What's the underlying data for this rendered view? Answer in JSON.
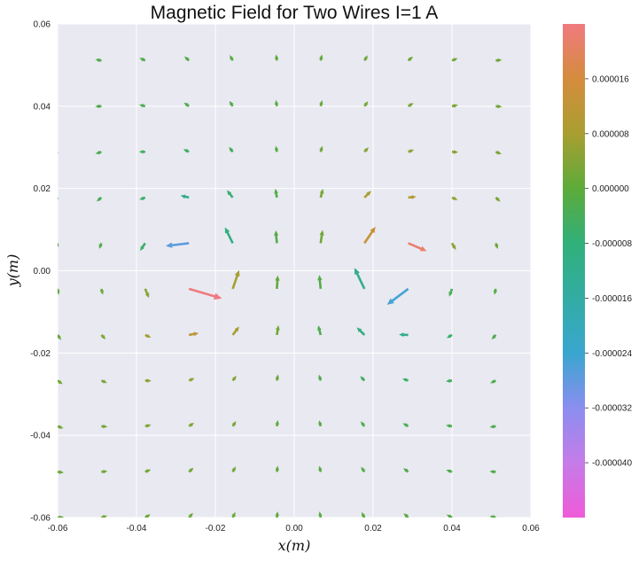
{
  "chart_data": {
    "type": "quiver",
    "title": "Magnetic Field for Two Wires I=1 A",
    "xlabel": "x(m)",
    "ylabel": "y(m)",
    "xlim": [
      -0.06,
      0.06
    ],
    "ylim": [
      -0.06,
      0.06
    ],
    "x_ticks": [
      "-0.06",
      "-0.04",
      "-0.02",
      "0.00",
      "0.02",
      "0.04",
      "0.06"
    ],
    "y_ticks": [
      "-0.06",
      "-0.04",
      "-0.02",
      "0.00",
      "0.02",
      "0.04",
      "0.06"
    ],
    "grid": true,
    "background": "#e9e9f1",
    "wires_x": [
      -0.025,
      0.025
    ],
    "grid_x": [
      -0.06,
      -0.0489,
      -0.0378,
      -0.0267,
      -0.0156,
      -0.0044,
      0.0067,
      0.0178,
      0.0289,
      0.04,
      0.0511
    ],
    "grid_y": [
      -0.06,
      -0.0489,
      -0.0378,
      -0.0267,
      -0.0156,
      -0.0044,
      0.0067,
      0.0178,
      0.0289,
      0.04,
      0.0511,
      0.0622
    ],
    "colorbar": {
      "min": -4.8e-05,
      "max": 2.4e-05,
      "ticks": [
        "0.000016",
        "0.000008",
        "0.000000",
        "-0.000008",
        "-0.000016",
        "-0.000024",
        "-0.000032",
        "-0.000040"
      ],
      "tick_values": [
        1.6e-05,
        8e-06,
        0.0,
        -8e-06,
        -1.6e-05,
        -2.4e-05,
        -3.2e-05,
        -4e-05
      ],
      "colors_top_to_bottom": [
        "#f07a7f",
        "#d58c3d",
        "#a99e31",
        "#5dab3a",
        "#31b07a",
        "#33aca4",
        "#39a6cf",
        "#8b8ef0",
        "#c57ce8",
        "#f05ad8"
      ]
    }
  }
}
